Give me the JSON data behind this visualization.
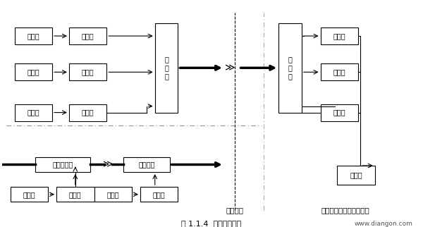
{
  "title": "图 1.1.4  射频传输方式",
  "watermark": "www.diangon.com",
  "caption_left": "单线传输",
  "caption_right": "视频信号分波解调为多路",
  "bg_color": "#ffffff",
  "box_color": "#000000",
  "line_color": "#000000",
  "thick_line_color": "#000000",
  "dash_line_color": "#888888",
  "font_size": 8,
  "boxes": {
    "cam1": [
      0.05,
      0.82,
      0.1,
      0.07,
      "摄像机"
    ],
    "mod1": [
      0.19,
      0.82,
      0.1,
      0.07,
      "调制器"
    ],
    "cam2": [
      0.05,
      0.65,
      0.1,
      0.07,
      "摄像机"
    ],
    "mod2": [
      0.19,
      0.65,
      0.1,
      0.07,
      "调制器"
    ],
    "cam3": [
      0.05,
      0.44,
      0.1,
      0.07,
      "摄像机"
    ],
    "mod3": [
      0.19,
      0.44,
      0.1,
      0.07,
      "调制器"
    ],
    "mixer": [
      0.36,
      0.58,
      0.07,
      0.38,
      "混\n合\n器"
    ],
    "splitter": [
      0.62,
      0.58,
      0.07,
      0.38,
      "分\n波\n器"
    ],
    "demod1": [
      0.76,
      0.82,
      0.1,
      0.07,
      "解调器"
    ],
    "demod2": [
      0.76,
      0.65,
      0.1,
      0.07,
      "解调器"
    ],
    "demod3": [
      0.76,
      0.44,
      0.1,
      0.07,
      "解调器"
    ],
    "control": [
      0.8,
      0.15,
      0.1,
      0.09,
      "控制台"
    ],
    "coupler1": [
      0.1,
      0.22,
      0.12,
      0.07,
      "定向耦合器"
    ],
    "coupler2": [
      0.3,
      0.22,
      0.11,
      0.07,
      "定向耦合"
    ],
    "cam4": [
      0.02,
      0.06,
      0.09,
      0.06,
      "摄像机"
    ],
    "mod4": [
      0.13,
      0.06,
      0.09,
      0.06,
      "调制器"
    ],
    "cam5": [
      0.22,
      0.06,
      0.09,
      0.06,
      "摄像机"
    ],
    "mod5": [
      0.33,
      0.06,
      0.09,
      0.06,
      "调制器"
    ]
  }
}
